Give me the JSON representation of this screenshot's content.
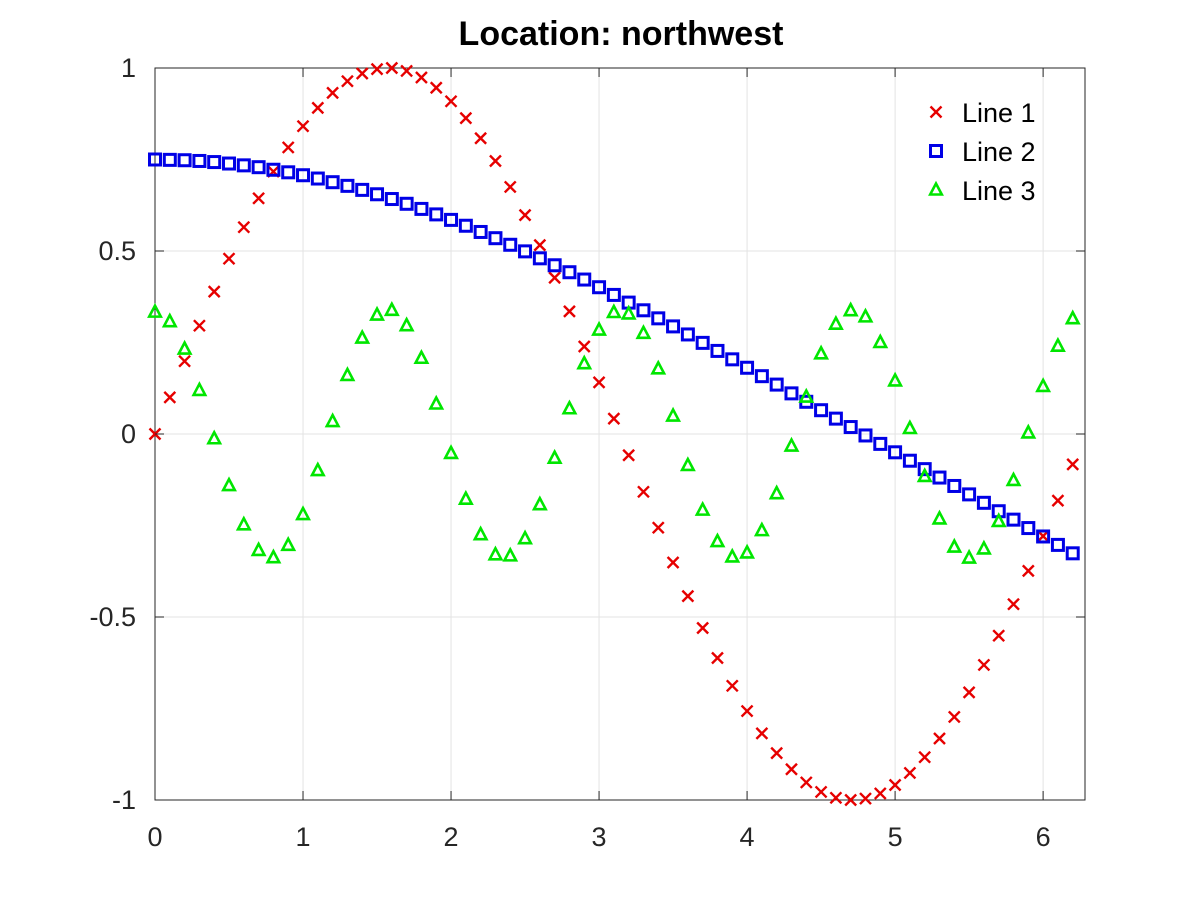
{
  "chart_data": {
    "type": "scatter",
    "title": "Location: northwest",
    "xlabel": "",
    "ylabel": "",
    "xlim": [
      0,
      6.283
    ],
    "ylim": [
      -1,
      1
    ],
    "xticks": [
      0,
      1,
      2,
      3,
      4,
      5,
      6
    ],
    "xtick_labels": [
      "0",
      "1",
      "2",
      "3",
      "4",
      "5",
      "6"
    ],
    "yticks": [
      -1,
      -0.5,
      0,
      0.5,
      1
    ],
    "ytick_labels": [
      "-1",
      "-0.5",
      "0",
      "0.5",
      "1"
    ],
    "grid": true,
    "legend_position": "top-right",
    "x": [
      0,
      0.1,
      0.2,
      0.3,
      0.4,
      0.5,
      0.6,
      0.7,
      0.8,
      0.9,
      1.0,
      1.1,
      1.2,
      1.3,
      1.4,
      1.5,
      1.6,
      1.7,
      1.8,
      1.9,
      2.0,
      2.1,
      2.2,
      2.3,
      2.4,
      2.5,
      2.6,
      2.7,
      2.8,
      2.9,
      3.0,
      3.1,
      3.2,
      3.3,
      3.4,
      3.5,
      3.6,
      3.7,
      3.8,
      3.9,
      4.0,
      4.1,
      4.2,
      4.3,
      4.4,
      4.5,
      4.6,
      4.7,
      4.8,
      4.9,
      5.0,
      5.1,
      5.2,
      5.3,
      5.4,
      5.5,
      5.6,
      5.7,
      5.8,
      5.9,
      6.0,
      6.1,
      6.2
    ],
    "series": [
      {
        "name": "Line 1",
        "marker": "x",
        "color": "#e60000",
        "values": [
          0,
          0.1,
          0.199,
          0.296,
          0.389,
          0.479,
          0.565,
          0.644,
          0.717,
          0.783,
          0.841,
          0.891,
          0.932,
          0.964,
          0.985,
          0.997,
          1.0,
          0.992,
          0.974,
          0.946,
          0.909,
          0.863,
          0.808,
          0.746,
          0.675,
          0.598,
          0.516,
          0.427,
          0.335,
          0.239,
          0.141,
          0.042,
          -0.058,
          -0.158,
          -0.256,
          -0.351,
          -0.443,
          -0.53,
          -0.612,
          -0.688,
          -0.757,
          -0.818,
          -0.872,
          -0.916,
          -0.952,
          -0.978,
          -0.994,
          -1.0,
          -0.996,
          -0.982,
          -0.959,
          -0.926,
          -0.883,
          -0.832,
          -0.773,
          -0.706,
          -0.631,
          -0.551,
          -0.465,
          -0.374,
          -0.279,
          -0.182,
          -0.083
        ]
      },
      {
        "name": "Line 2",
        "marker": "square",
        "color": "#0000e6",
        "values": [
          0.75,
          0.749,
          0.748,
          0.746,
          0.743,
          0.739,
          0.734,
          0.729,
          0.722,
          0.715,
          0.707,
          0.698,
          0.688,
          0.678,
          0.667,
          0.655,
          0.642,
          0.629,
          0.615,
          0.6,
          0.585,
          0.569,
          0.552,
          0.535,
          0.517,
          0.499,
          0.48,
          0.461,
          0.442,
          0.422,
          0.401,
          0.38,
          0.359,
          0.338,
          0.316,
          0.294,
          0.272,
          0.249,
          0.227,
          0.204,
          0.181,
          0.158,
          0.135,
          0.111,
          0.088,
          0.065,
          0.042,
          0.019,
          -0.004,
          -0.027,
          -0.05,
          -0.073,
          -0.096,
          -0.119,
          -0.142,
          -0.165,
          -0.188,
          -0.211,
          -0.234,
          -0.257,
          -0.28,
          -0.303,
          -0.326
        ]
      },
      {
        "name": "Line 3",
        "marker": "triangle",
        "color": "#00e600",
        "values": [
          0.333,
          0.307,
          0.232,
          0.119,
          -0.013,
          -0.141,
          -0.248,
          -0.318,
          -0.338,
          -0.304,
          -0.22,
          -0.1,
          0.034,
          0.16,
          0.262,
          0.325,
          0.338,
          0.296,
          0.207,
          0.082,
          -0.053,
          -0.178,
          -0.275,
          -0.33,
          -0.333,
          -0.286,
          -0.193,
          -0.066,
          0.069,
          0.192,
          0.284,
          0.332,
          0.328,
          0.275,
          0.178,
          0.049,
          -0.086,
          -0.208,
          -0.294,
          -0.336,
          -0.325,
          -0.264,
          -0.163,
          -0.033,
          0.101,
          0.219,
          0.3,
          0.337,
          0.32,
          0.25,
          0.145,
          0.015,
          -0.116,
          -0.232,
          -0.309,
          -0.339,
          -0.314,
          -0.239,
          -0.127,
          0.003,
          0.13,
          0.24,
          0.315
        ]
      }
    ]
  }
}
